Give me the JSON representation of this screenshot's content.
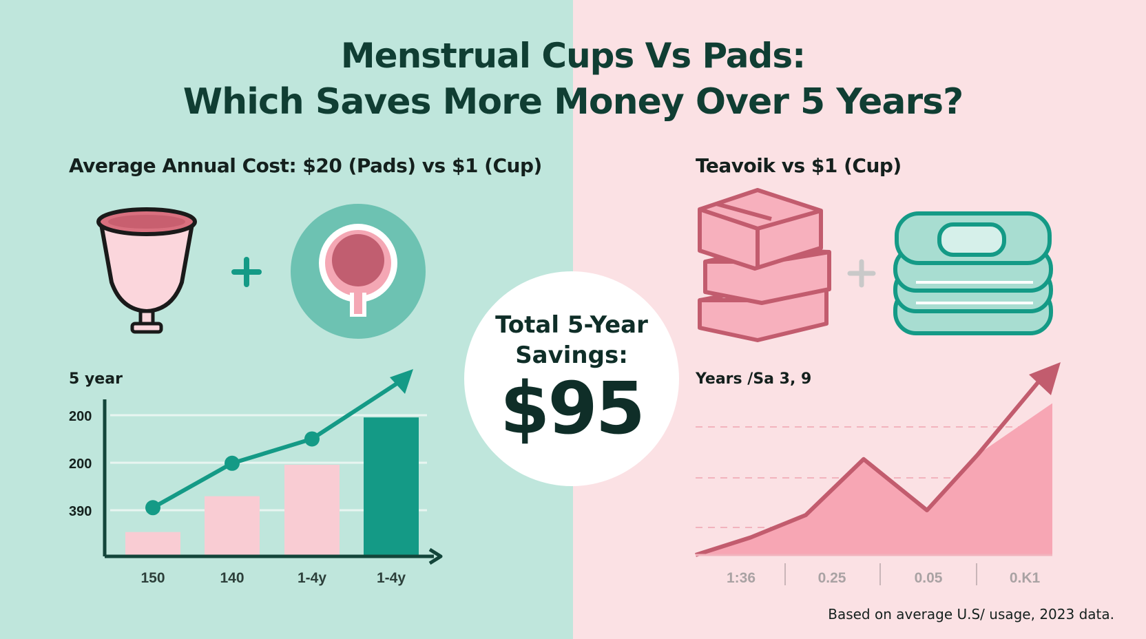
{
  "title": {
    "line1": "Menstrual Cups Vs Pads:",
    "line2": "Which Saves More Money Over 5 Years?"
  },
  "left": {
    "subtitle": "Average Annual Cost: $20 (Pads) vs $1 (Cup)",
    "plus_icon": "plus-icon",
    "icons": [
      "menstrual-cup-icon",
      "cup-circle-icon"
    ]
  },
  "right": {
    "subtitle": "Teavoik vs $1 (Cup)",
    "plus_icon": "plus-icon",
    "icons": [
      "pad-stack-pink-icon",
      "pad-stack-teal-icon"
    ]
  },
  "center": {
    "label": "Total 5-Year\nSavings:",
    "value": "$95"
  },
  "footnote": "Based on average U.S/ usage, 2023 data.",
  "colors": {
    "teal_bg": "#bfe6dc",
    "pink_bg": "#fbe1e4",
    "teal": "#149a86",
    "dark_teal": "#13705f",
    "pink": "#f9ccd3",
    "rose": "#c46a77",
    "rose_fill": "#f4a7b4"
  },
  "chart_data": [
    {
      "type": "bar",
      "title": "5 year",
      "categories": [
        "150",
        "140",
        "1-4y",
        "1-4y"
      ],
      "y_tick_labels": [
        "200",
        "200",
        "390"
      ],
      "bar_heights_relative": [
        0.17,
        0.42,
        0.64,
        0.97
      ],
      "bar_colors": [
        "#f9ccd3",
        "#f9ccd3",
        "#f9ccd3",
        "#149a86"
      ],
      "trend_line": [
        0.34,
        0.65,
        0.82,
        1.22
      ],
      "grid": true
    },
    {
      "type": "area",
      "title": "Years /Sa 3, 9",
      "x_tick_labels": [
        "1:36",
        "0.25",
        "0.05",
        "0.K1"
      ],
      "values_relative": [
        0.0,
        0.11,
        0.25,
        0.6,
        0.28,
        0.63,
        1.2
      ],
      "grid": true,
      "grid_style": "dashed"
    }
  ]
}
